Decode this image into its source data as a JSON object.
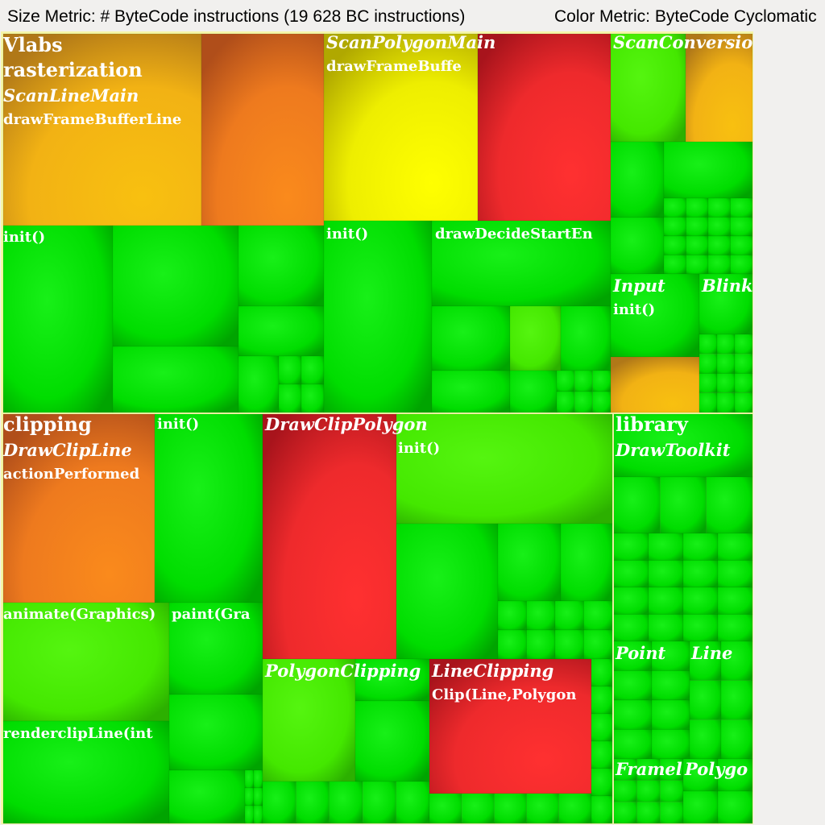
{
  "header": {
    "size_metric": "Size Metric: # ByteCode instructions (19 628 BC instructions)",
    "color_metric": "Color Metric: ByteCode Cyclomatic"
  },
  "colors": {
    "green": "#00dd00",
    "light_green": "#44ee00",
    "yellow": "#f5f500",
    "orange": "#f28a1c",
    "red": "#e8262a",
    "frame": "#f6f6a8"
  },
  "chart_data": {
    "type": "heatmap",
    "subtype": "treemap",
    "title": "",
    "size_metric": "# ByteCode instructions",
    "total_size": 19628,
    "color_metric": "ByteCode Cyclomatic",
    "labels": {
      "vlabs": "Vlabs",
      "rasterization": "rasterization",
      "scanlinemain": "ScanLineMain",
      "drawframebufferline": "drawFrameBufferLine",
      "init1": "init()",
      "scanpolygonmain": "ScanPolygonMain",
      "drawframebuffe": "drawFrameBuffe",
      "init2": "init()",
      "drawdecidestarten": "drawDecideStartEn",
      "scanconversio": "ScanConversio",
      "input": "Input",
      "init3": "init()",
      "blink": "Blink",
      "clipping": "clipping",
      "drawclipline": "DrawClipLine",
      "actionperformed": "actionPerformed",
      "init4": "init()",
      "animate": "animate(Graphics)",
      "paint": "paint(Gra",
      "renderclipline": "renderclipLine(int",
      "drawclippolygon": "DrawClipPolygon",
      "init5": "init()",
      "polygonclipping": "PolygonClipping",
      "lineclipping": "LineClipping",
      "clipline": "Clip(Line,Polygon",
      "library": "library",
      "drawtoolkit": "DrawToolkit",
      "point": "Point",
      "line": "Line",
      "framel": "Framel",
      "polygo": "Polygo"
    },
    "packages": [
      {
        "name": "rasterization",
        "classes": [
          {
            "name": "ScanLineMain",
            "methods": [
              {
                "name": "drawFrameBufferLine",
                "color": "orange"
              },
              {
                "name": "init()",
                "color": "green"
              }
            ]
          },
          {
            "name": "ScanPolygonMain",
            "methods": [
              {
                "name": "drawFrameBuffe",
                "color": "yellow"
              },
              {
                "name": "init()",
                "color": "green"
              },
              {
                "name": "drawDecideStartEn",
                "color": "green"
              }
            ]
          },
          {
            "name": "ScanConversio",
            "methods": []
          },
          {
            "name": "Input",
            "methods": [
              {
                "name": "init()",
                "color": "green"
              }
            ]
          },
          {
            "name": "Blink",
            "methods": []
          }
        ]
      },
      {
        "name": "clipping",
        "classes": [
          {
            "name": "DrawClipLine",
            "methods": [
              {
                "name": "actionPerformed",
                "color": "orange"
              },
              {
                "name": "init()",
                "color": "green"
              },
              {
                "name": "animate(Graphics)",
                "color": "light_green"
              },
              {
                "name": "paint(Gra",
                "color": "green"
              },
              {
                "name": "renderclipLine(int",
                "color": "green"
              }
            ]
          },
          {
            "name": "DrawClipPolygon",
            "methods": [
              {
                "name": "init()",
                "color": "light_green"
              }
            ]
          },
          {
            "name": "PolygonClipping",
            "methods": []
          },
          {
            "name": "LineClipping",
            "methods": [
              {
                "name": "Clip(Line,Polygon",
                "color": "red"
              }
            ]
          }
        ]
      },
      {
        "name": "library",
        "classes": [
          {
            "name": "DrawToolkit",
            "methods": []
          },
          {
            "name": "Point",
            "methods": []
          },
          {
            "name": "Line",
            "methods": []
          },
          {
            "name": "Framel",
            "methods": []
          },
          {
            "name": "Polygo",
            "methods": []
          }
        ]
      }
    ]
  }
}
